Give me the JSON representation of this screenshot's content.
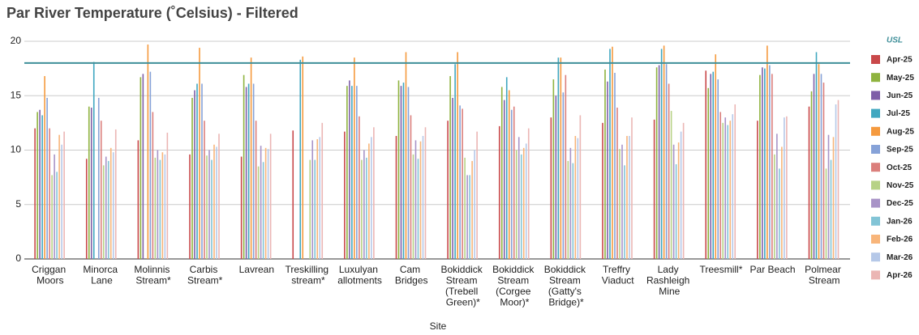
{
  "chart_data": {
    "type": "bar",
    "title": "Par River Temperature (˚Celsius) - Filtered",
    "x_label": "Site",
    "categories": [
      "Criggan Moors",
      "Minorca Lane",
      "Molinnis Stream*",
      "Carbis Stream*",
      "Lavrean",
      "Treskilling stream*",
      "Luxulyan allotments",
      "Cam Bridges",
      "Bokiddick Stream (Trebell Green)*",
      "Bokiddick Stream (Corgee Moor)*",
      "Bokiddick Stream (Gatty's Bridge)*",
      "Treffry Viaduct",
      "Lady Rashleigh Mine",
      "Treesmill*",
      "Par Beach",
      "Polmear Stream"
    ],
    "series": [
      {
        "name": "Apr-25",
        "color": "#c9484a",
        "values": [
          12.0,
          9.2,
          10.9,
          9.6,
          9.4,
          11.8,
          11.7,
          11.3,
          12.7,
          12.2,
          13.0,
          12.5,
          12.8,
          17.3,
          12.7,
          14.0
        ]
      },
      {
        "name": "May-25",
        "color": "#8fb33f",
        "values": [
          13.5,
          14.0,
          16.7,
          14.8,
          16.9,
          null,
          15.9,
          16.4,
          16.8,
          15.8,
          16.5,
          17.4,
          17.6,
          15.7,
          16.9,
          15.4
        ]
      },
      {
        "name": "Jun-25",
        "color": "#7f5fa8",
        "values": [
          13.7,
          13.9,
          17.0,
          15.5,
          15.8,
          null,
          16.4,
          15.9,
          14.8,
          14.6,
          15.0,
          16.3,
          17.8,
          17.0,
          17.6,
          17.0
        ]
      },
      {
        "name": "Jul-25",
        "color": "#40a7c0",
        "values": [
          13.2,
          18.1,
          null,
          16.1,
          16.1,
          18.3,
          15.9,
          16.2,
          17.9,
          16.7,
          18.5,
          19.3,
          19.3,
          17.2,
          17.5,
          19.0
        ]
      },
      {
        "name": "Aug-25",
        "color": "#f59a3e",
        "values": [
          16.8,
          null,
          19.7,
          19.4,
          18.5,
          18.6,
          18.5,
          19.0,
          19.0,
          15.5,
          18.5,
          19.5,
          19.6,
          18.8,
          19.6,
          17.9
        ]
      },
      {
        "name": "Sep-25",
        "color": "#86a2d8",
        "values": [
          14.8,
          14.8,
          17.2,
          16.1,
          16.1,
          null,
          15.9,
          15.8,
          14.1,
          13.7,
          15.3,
          17.1,
          17.9,
          16.5,
          17.8,
          17.0
        ]
      },
      {
        "name": "Oct-25",
        "color": "#db7f7c",
        "values": [
          12.0,
          12.7,
          13.5,
          12.7,
          12.7,
          null,
          13.1,
          13.2,
          13.8,
          14.0,
          16.9,
          13.9,
          16.1,
          13.5,
          17.0,
          16.2
        ]
      },
      {
        "name": "Nov-25",
        "color": "#b7d286",
        "values": [
          7.7,
          8.6,
          9.3,
          9.5,
          8.5,
          9.1,
          9.1,
          9.6,
          9.3,
          10.0,
          9.0,
          10.1,
          13.6,
          12.5,
          9.6,
          8.3
        ]
      },
      {
        "name": "Dec-25",
        "color": "#a893c7",
        "values": [
          9.6,
          9.4,
          10.0,
          10.0,
          10.4,
          10.9,
          10.0,
          10.9,
          7.7,
          11.2,
          10.2,
          10.5,
          10.5,
          13.0,
          11.5,
          11.4
        ]
      },
      {
        "name": "Jan-26",
        "color": "#82c4d6",
        "values": [
          8.0,
          9.0,
          9.1,
          9.1,
          8.9,
          9.1,
          9.3,
          9.2,
          7.7,
          9.6,
          8.8,
          8.6,
          8.7,
          12.3,
          8.3,
          9.1
        ]
      },
      {
        "name": "Feb-26",
        "color": "#f8b57a",
        "values": [
          11.4,
          10.2,
          9.8,
          10.5,
          10.2,
          11.0,
          10.6,
          10.8,
          9.0,
          10.2,
          11.3,
          11.3,
          10.7,
          12.7,
          10.3,
          11.2
        ]
      },
      {
        "name": "Mar-26",
        "color": "#b5c8e8",
        "values": [
          10.5,
          9.8,
          9.6,
          10.3,
          10.1,
          11.2,
          11.2,
          11.3,
          10.0,
          10.6,
          11.1,
          11.3,
          11.7,
          13.3,
          13.0,
          14.2
        ]
      },
      {
        "name": "Apr-26",
        "color": "#ebb6b4",
        "values": [
          11.7,
          11.9,
          11.6,
          11.5,
          11.5,
          12.5,
          12.1,
          12.1,
          11.7,
          12.0,
          13.2,
          13.0,
          12.5,
          14.2,
          13.1,
          14.6
        ]
      }
    ],
    "usl": {
      "name": "USL",
      "value": 18,
      "color": "#3f8f99"
    },
    "ylim": [
      0,
      20
    ],
    "yticks": [
      0,
      5,
      10,
      15,
      20
    ],
    "grid": true
  }
}
